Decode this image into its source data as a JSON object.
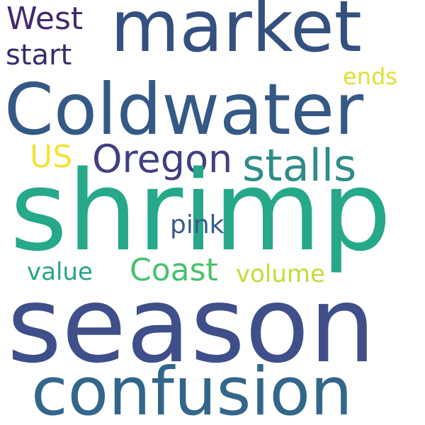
{
  "words": [
    {
      "id": "west",
      "text": "West",
      "color": "#45286e"
    },
    {
      "id": "market",
      "text": "market",
      "color": "#34507f"
    },
    {
      "id": "start",
      "text": "start",
      "color": "#3a2b6a"
    },
    {
      "id": "ends",
      "text": "ends",
      "color": "#dde033"
    },
    {
      "id": "coldwater",
      "text": "Coldwater",
      "color": "#355985"
    },
    {
      "id": "us",
      "text": "US",
      "color": "#f2e43a"
    },
    {
      "id": "oregon",
      "text": "Oregon",
      "color": "#423f80"
    },
    {
      "id": "stalls",
      "text": "stalls",
      "color": "#2f8c8a"
    },
    {
      "id": "shrimp",
      "text": "shrimp",
      "color": "#26a88a"
    },
    {
      "id": "pink",
      "text": "pink",
      "color": "#365c8b"
    },
    {
      "id": "coast",
      "text": "Coast",
      "color": "#48c06a"
    },
    {
      "id": "value",
      "text": "value",
      "color": "#25a488"
    },
    {
      "id": "volume",
      "text": "volume",
      "color": "#c4dc36"
    },
    {
      "id": "season",
      "text": "season",
      "color": "#3f4f8a"
    },
    {
      "id": "confusion",
      "text": "confusion",
      "color": "#33668b"
    }
  ]
}
